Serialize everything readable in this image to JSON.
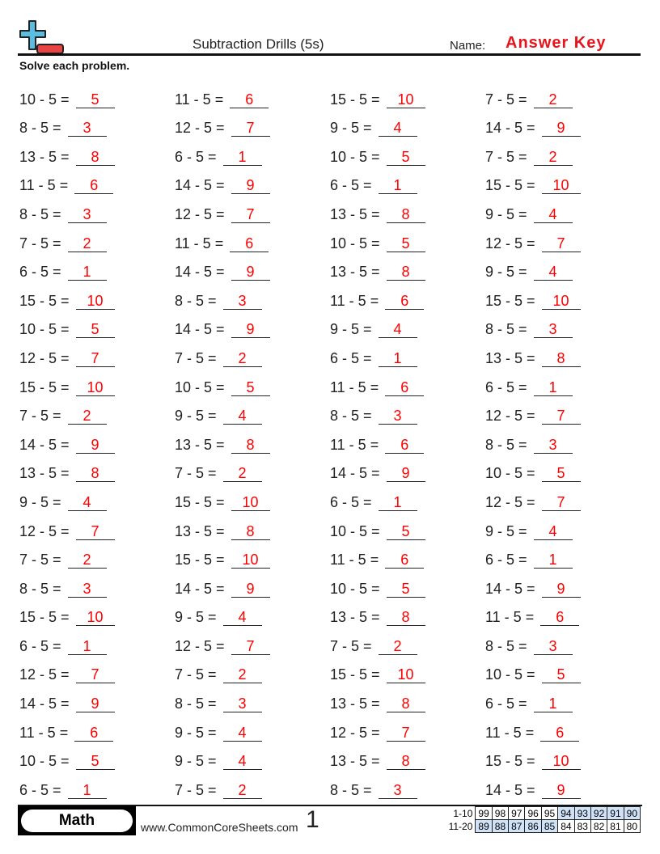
{
  "header": {
    "title": "Subtraction Drills (5s)",
    "name_label": "Name:",
    "name_value": "Answer Key",
    "instructions": "Solve each problem."
  },
  "colors": {
    "answer": "#ff0000",
    "logo_plus": "#5bbde0",
    "logo_minus": "#e84444",
    "score_shade": "#cfe2f7"
  },
  "problems": [
    [
      [
        "10 - 5 =",
        "5"
      ],
      [
        "11 - 5 =",
        "6"
      ],
      [
        "15 - 5 =",
        "10"
      ],
      [
        "7 - 5 =",
        "2"
      ]
    ],
    [
      [
        "8 - 5 =",
        "3"
      ],
      [
        "12 - 5 =",
        "7"
      ],
      [
        "9 - 5 =",
        "4"
      ],
      [
        "14 - 5 =",
        "9"
      ]
    ],
    [
      [
        "13 - 5 =",
        "8"
      ],
      [
        "6 - 5 =",
        "1"
      ],
      [
        "10 - 5 =",
        "5"
      ],
      [
        "7 - 5 =",
        "2"
      ]
    ],
    [
      [
        "11 - 5 =",
        "6"
      ],
      [
        "14 - 5 =",
        "9"
      ],
      [
        "6 - 5 =",
        "1"
      ],
      [
        "15 - 5 =",
        "10"
      ]
    ],
    [
      [
        "8 - 5 =",
        "3"
      ],
      [
        "12 - 5 =",
        "7"
      ],
      [
        "13 - 5 =",
        "8"
      ],
      [
        "9 - 5 =",
        "4"
      ]
    ],
    [
      [
        "7 - 5 =",
        "2"
      ],
      [
        "11 - 5 =",
        "6"
      ],
      [
        "10 - 5 =",
        "5"
      ],
      [
        "12 - 5 =",
        "7"
      ]
    ],
    [
      [
        "6 - 5 =",
        "1"
      ],
      [
        "14 - 5 =",
        "9"
      ],
      [
        "13 - 5 =",
        "8"
      ],
      [
        "9 - 5 =",
        "4"
      ]
    ],
    [
      [
        "15 - 5 =",
        "10"
      ],
      [
        "8 - 5 =",
        "3"
      ],
      [
        "11 - 5 =",
        "6"
      ],
      [
        "15 - 5 =",
        "10"
      ]
    ],
    [
      [
        "10 - 5 =",
        "5"
      ],
      [
        "14 - 5 =",
        "9"
      ],
      [
        "9 - 5 =",
        "4"
      ],
      [
        "8 - 5 =",
        "3"
      ]
    ],
    [
      [
        "12 - 5 =",
        "7"
      ],
      [
        "7 - 5 =",
        "2"
      ],
      [
        "6 - 5 =",
        "1"
      ],
      [
        "13 - 5 =",
        "8"
      ]
    ],
    [
      [
        "15 - 5 =",
        "10"
      ],
      [
        "10 - 5 =",
        "5"
      ],
      [
        "11 - 5 =",
        "6"
      ],
      [
        "6 - 5 =",
        "1"
      ]
    ],
    [
      [
        "7 - 5 =",
        "2"
      ],
      [
        "9 - 5 =",
        "4"
      ],
      [
        "8 - 5 =",
        "3"
      ],
      [
        "12 - 5 =",
        "7"
      ]
    ],
    [
      [
        "14 - 5 =",
        "9"
      ],
      [
        "13 - 5 =",
        "8"
      ],
      [
        "11 - 5 =",
        "6"
      ],
      [
        "8 - 5 =",
        "3"
      ]
    ],
    [
      [
        "13 - 5 =",
        "8"
      ],
      [
        "7 - 5 =",
        "2"
      ],
      [
        "14 - 5 =",
        "9"
      ],
      [
        "10 - 5 =",
        "5"
      ]
    ],
    [
      [
        "9 - 5 =",
        "4"
      ],
      [
        "15 - 5 =",
        "10"
      ],
      [
        "6 - 5 =",
        "1"
      ],
      [
        "12 - 5 =",
        "7"
      ]
    ],
    [
      [
        "12 - 5 =",
        "7"
      ],
      [
        "13 - 5 =",
        "8"
      ],
      [
        "10 - 5 =",
        "5"
      ],
      [
        "9 - 5 =",
        "4"
      ]
    ],
    [
      [
        "7 - 5 =",
        "2"
      ],
      [
        "15 - 5 =",
        "10"
      ],
      [
        "11 - 5 =",
        "6"
      ],
      [
        "6 - 5 =",
        "1"
      ]
    ],
    [
      [
        "8 - 5 =",
        "3"
      ],
      [
        "14 - 5 =",
        "9"
      ],
      [
        "10 - 5 =",
        "5"
      ],
      [
        "14 - 5 =",
        "9"
      ]
    ],
    [
      [
        "15 - 5 =",
        "10"
      ],
      [
        "9 - 5 =",
        "4"
      ],
      [
        "13 - 5 =",
        "8"
      ],
      [
        "11 - 5 =",
        "6"
      ]
    ],
    [
      [
        "6 - 5 =",
        "1"
      ],
      [
        "12 - 5 =",
        "7"
      ],
      [
        "7 - 5 =",
        "2"
      ],
      [
        "8 - 5 =",
        "3"
      ]
    ],
    [
      [
        "12 - 5 =",
        "7"
      ],
      [
        "7 - 5 =",
        "2"
      ],
      [
        "15 - 5 =",
        "10"
      ],
      [
        "10 - 5 =",
        "5"
      ]
    ],
    [
      [
        "14 - 5 =",
        "9"
      ],
      [
        "8 - 5 =",
        "3"
      ],
      [
        "13 - 5 =",
        "8"
      ],
      [
        "6 - 5 =",
        "1"
      ]
    ],
    [
      [
        "11 - 5 =",
        "6"
      ],
      [
        "9 - 5 =",
        "4"
      ],
      [
        "12 - 5 =",
        "7"
      ],
      [
        "11 - 5 =",
        "6"
      ]
    ],
    [
      [
        "10 - 5 =",
        "5"
      ],
      [
        "9 - 5 =",
        "4"
      ],
      [
        "13 - 5 =",
        "8"
      ],
      [
        "15 - 5 =",
        "10"
      ]
    ],
    [
      [
        "6 - 5 =",
        "1"
      ],
      [
        "7 - 5 =",
        "2"
      ],
      [
        "8 - 5 =",
        "3"
      ],
      [
        "14 - 5 =",
        "9"
      ]
    ]
  ],
  "footer": {
    "subject": "Math",
    "site": "www.CommonCoreSheets.com",
    "page": "1",
    "score_rows": [
      {
        "label": "1-10",
        "scores": [
          "99",
          "98",
          "97",
          "96",
          "95",
          "94",
          "93",
          "92",
          "91",
          "90"
        ],
        "shaded": [
          false,
          false,
          false,
          false,
          false,
          true,
          true,
          true,
          true,
          true
        ]
      },
      {
        "label": "11-20",
        "scores": [
          "89",
          "88",
          "87",
          "86",
          "85",
          "84",
          "83",
          "82",
          "81",
          "80"
        ],
        "shaded": [
          true,
          true,
          true,
          true,
          true,
          false,
          false,
          false,
          false,
          false
        ]
      }
    ]
  }
}
